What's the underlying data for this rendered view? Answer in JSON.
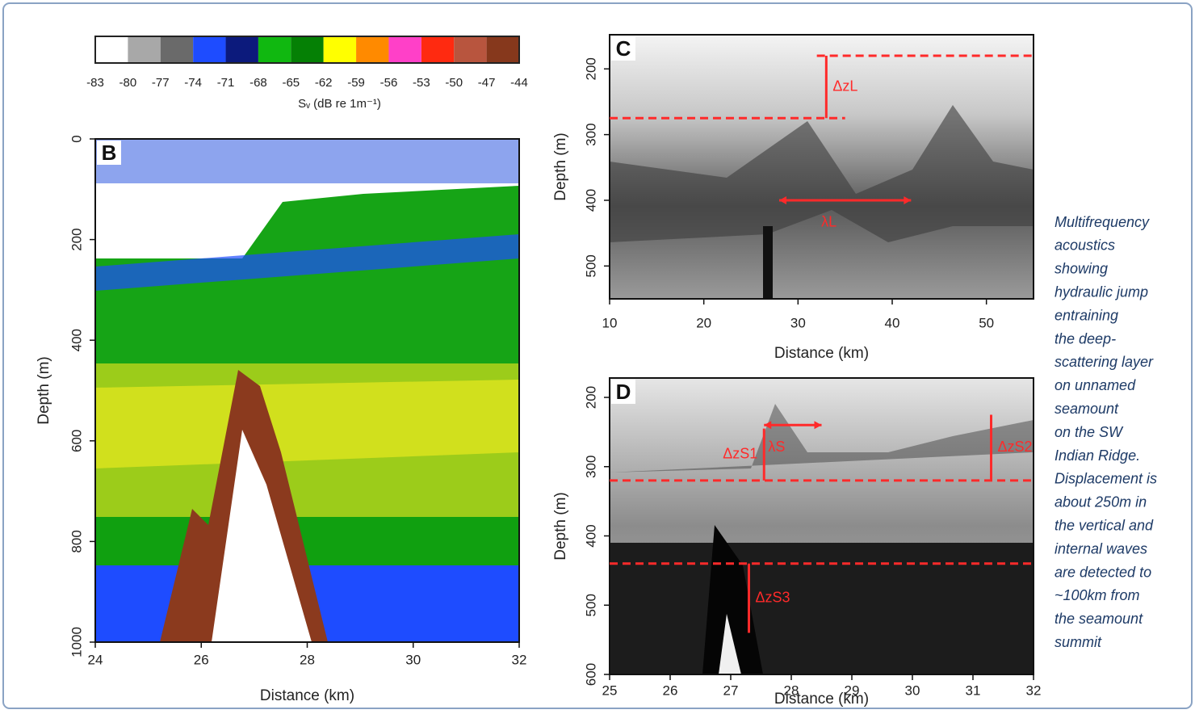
{
  "chart_data": [
    {
      "type": "colorbar",
      "xlabel": "Sᵥ (dB re 1m⁻¹)",
      "bins": [
        -83,
        -80,
        -77,
        -74,
        -71,
        -68,
        -65,
        -62,
        -59,
        -56,
        -53,
        -50,
        -47,
        -44
      ],
      "colors": [
        "#ffffff",
        "#a8a8a8",
        "#6a6a6a",
        "#1e4cff",
        "#0c1a7c",
        "#10b810",
        "#058005",
        "#ffff00",
        "#ff8a00",
        "#ff40c8",
        "#ff2a10",
        "#b8553e",
        "#86381c"
      ]
    },
    {
      "type": "echogram",
      "panel_label": "B",
      "xlabel": "Distance (km)",
      "ylabel": "Depth (m)",
      "xlim": [
        24,
        32
      ],
      "xticks": [
        24,
        26,
        28,
        30,
        32
      ],
      "ylim": [
        0,
        1000
      ],
      "yticks": [
        0,
        200,
        400,
        600,
        800,
        1000
      ],
      "hlines": [],
      "annotations": []
    },
    {
      "type": "echogram",
      "panel_label": "C",
      "xlabel": "Distance (km)",
      "ylabel": "Depth (m)",
      "xlim": [
        10,
        55
      ],
      "xticks": [
        10,
        20,
        30,
        40,
        50
      ],
      "ylim": [
        148,
        550
      ],
      "yticks": [
        200,
        300,
        400,
        500
      ],
      "hlines": [
        {
          "y": 180,
          "x": [
            32,
            55
          ]
        },
        {
          "y": 275,
          "x": [
            10,
            35
          ]
        }
      ],
      "annotations": [
        {
          "text": "ΔzL",
          "x": 33,
          "y": [
            180,
            275
          ]
        },
        {
          "text": "λL",
          "x": [
            28,
            42
          ],
          "y": 400
        }
      ]
    },
    {
      "type": "echogram",
      "panel_label": "D",
      "xlabel": "Distance (km)",
      "ylabel": "Depth (m)",
      "xlim": [
        25,
        32
      ],
      "xticks": [
        25,
        26,
        27,
        28,
        29,
        30,
        31,
        32
      ],
      "ylim": [
        172,
        600
      ],
      "yticks": [
        200,
        300,
        400,
        500,
        600
      ],
      "hlines": [
        {
          "y": 320,
          "x": [
            25,
            32
          ]
        },
        {
          "y": 440,
          "x": [
            25,
            32
          ]
        }
      ],
      "annotations": [
        {
          "text": "λS",
          "x": [
            27.55,
            28.5
          ],
          "y": 240
        },
        {
          "text": "ΔzS1",
          "x": 27.55,
          "y": [
            245,
            320
          ],
          "side": "left"
        },
        {
          "text": "ΔzS2",
          "x": 31.3,
          "y": [
            225,
            320
          ]
        },
        {
          "text": "ΔzS3",
          "x": 27.3,
          "y": [
            440,
            540
          ]
        }
      ]
    }
  ],
  "caption": [
    "Multifrequency",
    "acoustics",
    "showing",
    "hydraulic jump",
    "entraining",
    "the deep-",
    "scattering layer",
    "on unnamed",
    "seamount",
    "on the SW",
    "Indian Ridge.",
    "Displacement is",
    "about 250m in",
    "the vertical and",
    "internal waves",
    "are detected to",
    "~100km from",
    "the seamount",
    "summit"
  ]
}
